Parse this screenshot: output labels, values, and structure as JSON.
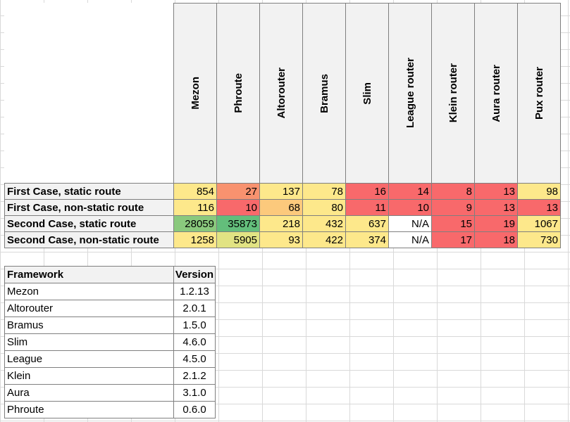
{
  "columns": [
    "Mezon",
    "Phroute",
    "Altorouter",
    "Bramus",
    "Slim",
    "League router",
    "Klein router",
    "Aura router",
    "Pux router"
  ],
  "rows": [
    {
      "label": "First Case, static route",
      "values": [
        "854",
        "27",
        "137",
        "78",
        "16",
        "14",
        "8",
        "13",
        "98"
      ],
      "colors": [
        "#fde88b",
        "#f8926f",
        "#fde88b",
        "#fde88b",
        "#f8696b",
        "#f8696b",
        "#f8696b",
        "#f8696b",
        "#fde88b"
      ]
    },
    {
      "label": "First Case, non-static route",
      "values": [
        "116",
        "10",
        "68",
        "80",
        "11",
        "10",
        "9",
        "13",
        "13"
      ],
      "colors": [
        "#fde88b",
        "#f8696b",
        "#fcc97c",
        "#fde88b",
        "#f8696b",
        "#f8696b",
        "#f8696b",
        "#f8696b",
        "#f8696b"
      ]
    },
    {
      "label": "Second Case, static route",
      "values": [
        "28059",
        "35873",
        "218",
        "432",
        "637",
        "N/A",
        "15",
        "19",
        "1067"
      ],
      "colors": [
        "#8ac97d",
        "#63be7b",
        "#fde88b",
        "#fde88b",
        "#fde88b",
        "#ffffff",
        "#f8696b",
        "#f8696b",
        "#fde88b"
      ]
    },
    {
      "label": "Second Case, non-static route",
      "values": [
        "1258",
        "5905",
        "93",
        "422",
        "374",
        "N/A",
        "17",
        "18",
        "730"
      ],
      "colors": [
        "#fde88b",
        "#e1e383",
        "#fde88b",
        "#fde88b",
        "#fde88b",
        "#ffffff",
        "#f8696b",
        "#f8696b",
        "#fde88b"
      ]
    }
  ],
  "frameworks": {
    "header": {
      "name": "Framework",
      "version": "Version"
    },
    "items": [
      {
        "name": "Mezon",
        "version": "1.2.13"
      },
      {
        "name": "Altorouter",
        "version": "2.0.1"
      },
      {
        "name": "Bramus",
        "version": "1.5.0"
      },
      {
        "name": "Slim",
        "version": "4.6.0"
      },
      {
        "name": "League",
        "version": "4.5.0"
      },
      {
        "name": "Klein",
        "version": "2.1.2"
      },
      {
        "name": "Aura",
        "version": "3.1.0"
      },
      {
        "name": "Phroute",
        "version": "0.6.0"
      }
    ]
  }
}
